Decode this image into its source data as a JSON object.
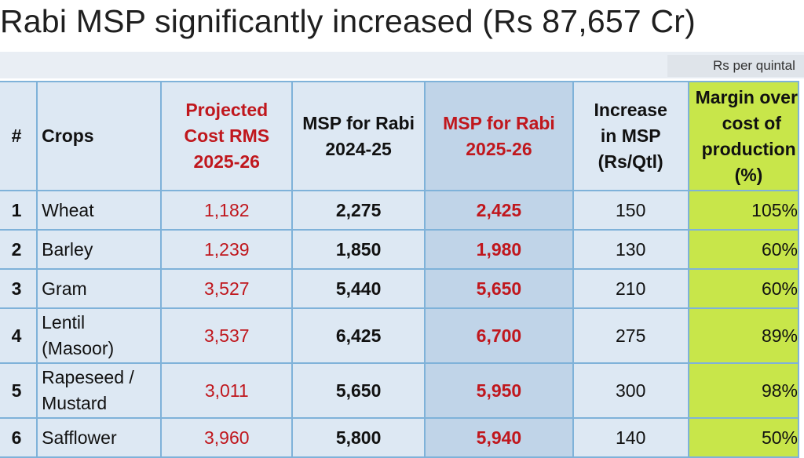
{
  "title": "Rabi MSP significantly increased (Rs 87,657 Cr)",
  "unit_note": "Rs per quintal",
  "headers": {
    "num": "#",
    "crops": "Crops",
    "projected_cost": [
      "Projected",
      "Cost RMS",
      "2025-26"
    ],
    "msp_2024": [
      "MSP for Rabi",
      "2024-25"
    ],
    "msp_2025": [
      "MSP for Rabi",
      "2025-26"
    ],
    "increase": [
      "Increase",
      "in MSP",
      "(Rs/Qtl)"
    ],
    "margin": [
      "Margin over",
      "cost of",
      "production",
      "(%)"
    ]
  },
  "rows": [
    {
      "num": "1",
      "crop": [
        "Wheat"
      ],
      "cost": "1,182",
      "msp_2024": "2,275",
      "msp_2025": "2,425",
      "increase": "150",
      "margin": "105%"
    },
    {
      "num": "2",
      "crop": [
        "Barley"
      ],
      "cost": "1,239",
      "msp_2024": "1,850",
      "msp_2025": "1,980",
      "increase": "130",
      "margin": "60%"
    },
    {
      "num": "3",
      "crop": [
        "Gram"
      ],
      "cost": "3,527",
      "msp_2024": "5,440",
      "msp_2025": "5,650",
      "increase": "210",
      "margin": "60%"
    },
    {
      "num": "4",
      "crop": [
        "Lentil",
        "(Masoor)"
      ],
      "cost": "3,537",
      "msp_2024": "6,425",
      "msp_2025": "6,700",
      "increase": "275",
      "margin": "89%"
    },
    {
      "num": "5",
      "crop": [
        "Rapeseed /",
        "Mustard"
      ],
      "cost": "3,011",
      "msp_2024": "5,650",
      "msp_2025": "5,950",
      "increase": "300",
      "margin": "98%"
    },
    {
      "num": "6",
      "crop": [
        "Safflower"
      ],
      "cost": "3,960",
      "msp_2024": "5,800",
      "msp_2025": "5,940",
      "increase": "140",
      "margin": "50%"
    }
  ],
  "colors": {
    "cell_bg": "#dde8f3",
    "highlight_column": "#c0d4e8",
    "margin_column": "#c8e64a",
    "accent_red": "#c0171d",
    "grid": "#7fb2d9"
  }
}
